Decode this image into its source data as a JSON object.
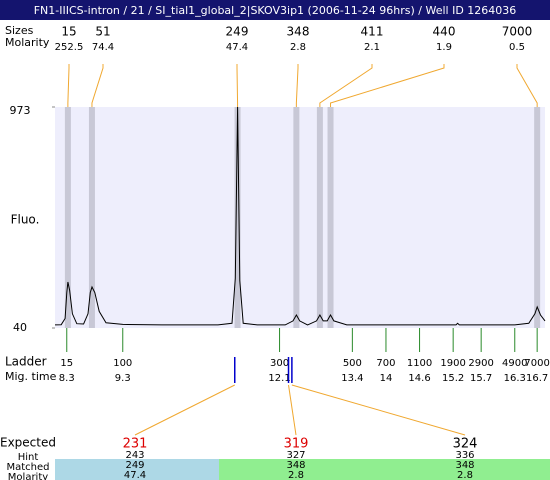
{
  "chart_data": {
    "type": "electropherogram",
    "title": "FN1-IIICS-intron / 21 / SI_tial1_global_2|SKOV3ip1 (2006-11-24 96hrs) / Well ID 1264036",
    "ylabel": "Fluo.",
    "ylim": [
      40,
      973
    ],
    "yticks": [
      973,
      40
    ],
    "xlim": [
      8.09,
      16.84
    ],
    "peak_row_labels": [
      "Sizes",
      "Molarity"
    ],
    "peaks": {
      "sizes": [
        15,
        51,
        249,
        348,
        411,
        440,
        7000
      ],
      "molarity": [
        252.5,
        74.4,
        47.4,
        2.8,
        2.1,
        1.9,
        0.5
      ],
      "times": [
        8.32,
        8.75,
        11.35,
        12.4,
        12.82,
        13.01,
        16.7
      ]
    },
    "trace": {
      "color": "#000000",
      "x": [
        8.09,
        8.2,
        8.27,
        8.3,
        8.32,
        8.35,
        8.4,
        8.48,
        8.6,
        8.68,
        8.72,
        8.75,
        8.8,
        8.88,
        9.0,
        9.3,
        10.0,
        11.0,
        11.25,
        11.31,
        11.35,
        11.39,
        11.45,
        11.7,
        12.2,
        12.34,
        12.4,
        12.46,
        12.6,
        12.76,
        12.82,
        12.88,
        12.95,
        13.01,
        13.07,
        13.3,
        14.5,
        15.25,
        15.28,
        15.31,
        16.3,
        16.55,
        16.66,
        16.7,
        16.76,
        16.84
      ],
      "y": [
        53,
        54,
        80,
        190,
        234,
        200,
        100,
        58,
        57,
        100,
        190,
        213,
        190,
        110,
        62,
        55,
        53,
        53,
        60,
        250,
        973,
        240,
        60,
        53,
        53,
        70,
        95,
        70,
        53,
        70,
        95,
        70,
        70,
        95,
        70,
        53,
        53,
        53,
        60,
        53,
        53,
        60,
        100,
        129,
        95,
        70
      ]
    },
    "ladder_labels": [
      "Ladder",
      "Mig. time"
    ],
    "ladder": {
      "sizes": [
        15,
        100,
        300,
        500,
        700,
        1100,
        1900,
        2900,
        4900,
        7000
      ],
      "times": [
        8.3,
        9.3,
        12.1,
        13.4,
        14,
        14.6,
        15.2,
        15.7,
        16.3,
        16.7
      ]
    },
    "table_labels": [
      "Expected",
      "Hint",
      "Matched",
      "Molarity"
    ],
    "expected": {
      "values": [
        231,
        319,
        324
      ],
      "colors": [
        "#dd0000",
        "#dd0000",
        "#000000"
      ],
      "hint": [
        243,
        327,
        336
      ],
      "matched": [
        249,
        348,
        348
      ],
      "molarity": [
        47.4,
        2.8,
        2.8
      ],
      "marker_times": [
        11.3,
        12.26,
        12.32
      ],
      "row_colors": [
        "#add8e6",
        "#90ee90",
        "#90ee90"
      ]
    }
  }
}
